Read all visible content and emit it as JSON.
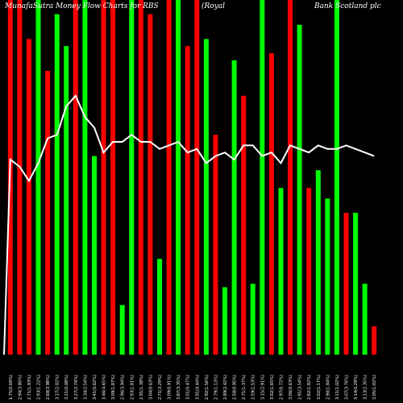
{
  "header": {
    "left": "MunafaSutra Money Flow Charts for RBS",
    "middle": "(Royal",
    "right": "Bank Scotland plc"
  },
  "chart_data": {
    "type": "bar",
    "ylim": [
      0,
      100
    ],
    "colors": {
      "up": "#00ff00",
      "down": "#ff0000",
      "line": "#ffffff",
      "background": "#000000"
    },
    "bars": [
      {
        "value": 100,
        "color": "red"
      },
      {
        "value": 100,
        "color": "red"
      },
      {
        "value": 89,
        "color": "red"
      },
      {
        "value": 100,
        "color": "green"
      },
      {
        "value": 80,
        "color": "red"
      },
      {
        "value": 96,
        "color": "green"
      },
      {
        "value": 87,
        "color": "green"
      },
      {
        "value": 100,
        "color": "red"
      },
      {
        "value": 100,
        "color": "green"
      },
      {
        "value": 56,
        "color": "green"
      },
      {
        "value": 100,
        "color": "red"
      },
      {
        "value": 100,
        "color": "red"
      },
      {
        "value": 14,
        "color": "green"
      },
      {
        "value": 100,
        "color": "green"
      },
      {
        "value": 100,
        "color": "red"
      },
      {
        "value": 96,
        "color": "red"
      },
      {
        "value": 27,
        "color": "green"
      },
      {
        "value": 100,
        "color": "red"
      },
      {
        "value": 100,
        "color": "green"
      },
      {
        "value": 87,
        "color": "red"
      },
      {
        "value": 100,
        "color": "red"
      },
      {
        "value": 89,
        "color": "green"
      },
      {
        "value": 62,
        "color": "red"
      },
      {
        "value": 19,
        "color": "green"
      },
      {
        "value": 83,
        "color": "green"
      },
      {
        "value": 73,
        "color": "red"
      },
      {
        "value": 20,
        "color": "green"
      },
      {
        "value": 100,
        "color": "green"
      },
      {
        "value": 85,
        "color": "red"
      },
      {
        "value": 47,
        "color": "green"
      },
      {
        "value": 100,
        "color": "red"
      },
      {
        "value": 93,
        "color": "green"
      },
      {
        "value": 47,
        "color": "red"
      },
      {
        "value": 52,
        "color": "green"
      },
      {
        "value": 44,
        "color": "green"
      },
      {
        "value": 100,
        "color": "green"
      },
      {
        "value": 40,
        "color": "red"
      },
      {
        "value": 40,
        "color": "green"
      },
      {
        "value": 20,
        "color": "green"
      },
      {
        "value": 8,
        "color": "red"
      }
    ],
    "line": [
      55,
      53,
      49,
      54,
      61,
      62,
      70,
      73,
      67,
      64,
      57,
      60,
      60,
      62,
      60,
      60,
      58,
      59,
      60,
      57,
      58,
      54,
      56,
      57,
      55,
      59,
      59,
      56,
      57,
      54,
      59,
      58,
      57,
      59,
      58,
      58,
      59,
      58,
      57,
      56
    ],
    "x_labels": [
      "1.75(0.69%)",
      "2.94(3.80%)",
      "2.71(1.93%)",
      "2.93(1.22%)",
      "2.68(3.98%)",
      "3.17(2.02%)",
      "3.21(0.08%)",
      "3.27(2.74%)",
      "3.34(2.54%)",
      "3.41(0.62%)",
      "3.46(4.65%)",
      "3.09(1.87%)",
      "2.96(3.94%)",
      "2.93(1.81%)",
      "2.91(1.38%)",
      "3.04(0.63%)",
      "2.71(3.29%)",
      "3.09(0.91%)",
      "3.87(3.35%)",
      "3.01(0.47%)",
      "3.91(0.44%)",
      "2.92(1.56%)",
      "2.79(1.13%)",
      "2.89(2.42%)",
      "2.58(0.95%)",
      "2.71(1.37%)",
      "2.59(1.53%)",
      "3.15(2.91%)",
      "3.02(1.65%)",
      "2.97(0.72%)",
      "3.06(0.63%)",
      "2.91(3.54%)",
      "2.82(1.82%)",
      "3.02(1.17%)",
      "2.90(1.84%)",
      "3.11(1.02%)",
      "3.07(3.76%)",
      "3.14(0.29%)",
      "3.13(2.35%)",
      "3.05(1.02%)"
    ]
  }
}
